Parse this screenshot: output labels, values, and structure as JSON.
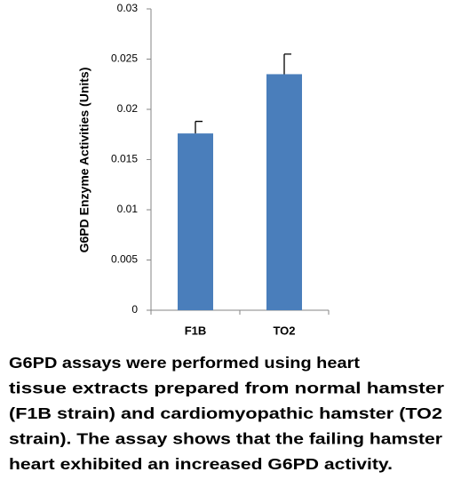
{
  "chart_data": {
    "type": "bar",
    "y_label": "G6PD Enzyme Activities (Units)",
    "categories": [
      "F1B",
      "TO2"
    ],
    "values": [
      0.0176,
      0.0235
    ],
    "errors": [
      0.0012,
      0.002
    ],
    "color": "#4a7ebb",
    "ylim": [
      0,
      0.03
    ],
    "yticks": [
      0,
      0.005,
      0.01,
      0.015,
      0.02,
      0.025,
      0.03
    ],
    "grid": false,
    "caption": [
      "G6PD assays were performed using heart",
      "tissue extracts prepared from normal hamster",
      "(F1B strain) and cardiomyopathic hamster (TO2",
      "strain). The assay shows that the failing hamster",
      "heart exhibited an increased G6PD activity."
    ]
  }
}
